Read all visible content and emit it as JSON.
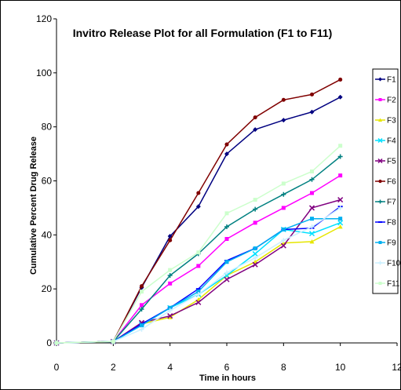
{
  "chart_data": {
    "type": "line",
    "title": "Invitro Release Plot for all Formulation (F1 to F11)",
    "xlabel": "Time in hours",
    "ylabel": "Cumulative Percent Drug Release",
    "xlim": [
      0,
      12
    ],
    "ylim": [
      0,
      120
    ],
    "x_ticks": [
      "0",
      "2",
      "4",
      "6",
      "8",
      "10",
      "12"
    ],
    "y_ticks": [
      "0",
      "20",
      "40",
      "60",
      "80",
      "100",
      "120"
    ],
    "grid": false,
    "legend_position": "right",
    "x": [
      0,
      2,
      3,
      4,
      5,
      6,
      7,
      8,
      9,
      10
    ],
    "series": [
      {
        "name": "F1",
        "color": "#000080",
        "marker": "diamond",
        "values": [
          0,
          0.5,
          20.5,
          39.5,
          50.5,
          70,
          79,
          82.5,
          85.5,
          91
        ]
      },
      {
        "name": "F2",
        "color": "#FF00FF",
        "marker": "square",
        "values": [
          0,
          0.5,
          14,
          22,
          28.5,
          38.5,
          44.5,
          50,
          55.5,
          62
        ]
      },
      {
        "name": "F3",
        "color": "#E6E600",
        "marker": "triangle",
        "values": [
          0,
          0.5,
          7,
          9.5,
          16,
          25,
          30,
          37,
          37.5,
          43
        ]
      },
      {
        "name": "F4",
        "color": "#00E0FF",
        "marker": "x",
        "values": [
          0,
          0.5,
          7,
          13,
          18,
          25,
          33,
          42,
          40.5,
          44.5
        ]
      },
      {
        "name": "F5",
        "color": "#800080",
        "marker": "x",
        "values": [
          0,
          0.5,
          7.5,
          10,
          15,
          23.5,
          29,
          36,
          50,
          53
        ]
      },
      {
        "name": "F6",
        "color": "#800000",
        "marker": "circle",
        "values": [
          0,
          0.5,
          21,
          38,
          55.5,
          73.5,
          83.5,
          90,
          92,
          97.5
        ]
      },
      {
        "name": "F7",
        "color": "#008080",
        "marker": "plus",
        "values": [
          0,
          0.5,
          12.5,
          25,
          33,
          43,
          49.5,
          55,
          60.5,
          69
        ]
      },
      {
        "name": "F8",
        "color": "#0000FF",
        "marker": "dash",
        "values": [
          0,
          0.5,
          7,
          13,
          20,
          30.5,
          35,
          42,
          42.5,
          50.5
        ]
      },
      {
        "name": "F9",
        "color": "#00B0F0",
        "marker": "square",
        "values": [
          0,
          0.5,
          6.5,
          13,
          19,
          30,
          35,
          42,
          46,
          46
        ]
      },
      {
        "name": "F10",
        "color": "#CCF0FF",
        "marker": "plus",
        "values": [
          0,
          0.5,
          5,
          12,
          18,
          26,
          31.5,
          38,
          43,
          50
        ]
      },
      {
        "name": "F11",
        "color": "#CCFFCC",
        "marker": "square",
        "values": [
          0,
          0.5,
          19,
          27,
          33.5,
          48,
          53,
          59,
          63.5,
          73
        ]
      }
    ]
  }
}
